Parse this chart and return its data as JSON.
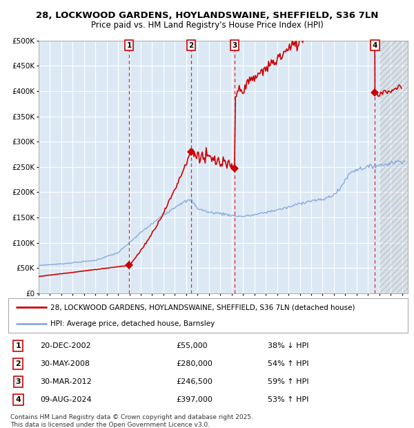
{
  "title1": "28, LOCKWOOD GARDENS, HOYLANDSWAINE, SHEFFIELD, S36 7LN",
  "title2": "Price paid vs. HM Land Registry's House Price Index (HPI)",
  "plot_bg_color": "#dce9f5",
  "grid_color": "#ffffff",
  "hpi_color": "#88aadd",
  "price_color": "#cc0000",
  "sale_dates": [
    2002.97,
    2008.42,
    2012.25,
    2024.61
  ],
  "sale_prices": [
    55000,
    280000,
    246500,
    397000
  ],
  "sale_labels": [
    "1",
    "2",
    "3",
    "4"
  ],
  "ylim": [
    0,
    500000
  ],
  "yticks": [
    0,
    50000,
    100000,
    150000,
    200000,
    250000,
    300000,
    350000,
    400000,
    450000,
    500000
  ],
  "ytick_labels": [
    "£0",
    "£50K",
    "£100K",
    "£150K",
    "£200K",
    "£250K",
    "£300K",
    "£350K",
    "£400K",
    "£450K",
    "£500K"
  ],
  "xlim_start": 1995.0,
  "xlim_end": 2027.5,
  "legend_price_label": "28, LOCKWOOD GARDENS, HOYLANDSWAINE, SHEFFIELD, S36 7LN (detached house)",
  "legend_hpi_label": "HPI: Average price, detached house, Barnsley",
  "table_rows": [
    [
      "1",
      "20-DEC-2002",
      "£55,000",
      "38% ↓ HPI"
    ],
    [
      "2",
      "30-MAY-2008",
      "£280,000",
      "54% ↑ HPI"
    ],
    [
      "3",
      "30-MAR-2012",
      "£246,500",
      "59% ↑ HPI"
    ],
    [
      "4",
      "09-AUG-2024",
      "£397,000",
      "53% ↑ HPI"
    ]
  ],
  "footer": "Contains HM Land Registry data © Crown copyright and database right 2025.\nThis data is licensed under the Open Government Licence v3.0.",
  "hatch_area_start": 2025.0
}
